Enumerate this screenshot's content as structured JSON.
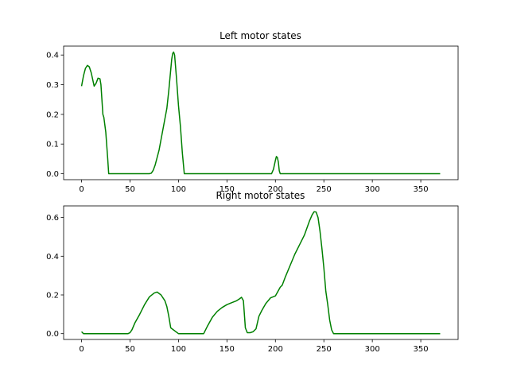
{
  "colors": {
    "line": "#008000",
    "axes": "#000000",
    "background": "#ffffff"
  },
  "chart_data": [
    {
      "type": "line",
      "title": "Left motor states",
      "xlabel": "",
      "ylabel": "",
      "xlim": [
        -18.5,
        388.5
      ],
      "ylim": [
        -0.02,
        0.43
      ],
      "xticks": [
        0,
        50,
        100,
        150,
        200,
        250,
        300,
        350
      ],
      "yticks": [
        0.0,
        0.1,
        0.2,
        0.3,
        0.4
      ],
      "ytick_labels": [
        "0.0",
        "0.1",
        "0.2",
        "0.3",
        "0.4"
      ],
      "grid": false,
      "series": [
        {
          "x": [
            0,
            2,
            4,
            6,
            8,
            10,
            12,
            13,
            15,
            17,
            19,
            20,
            21,
            22,
            23,
            25,
            27,
            28,
            30,
            40,
            50,
            60,
            70,
            72,
            74,
            76,
            80,
            84,
            88,
            90,
            92,
            93,
            94,
            95,
            96,
            98,
            100,
            102,
            104,
            106,
            110,
            150,
            196,
            198,
            200,
            201,
            202,
            203,
            204,
            205,
            206,
            250,
            300,
            350,
            370
          ],
          "y": [
            0.295,
            0.33,
            0.355,
            0.365,
            0.36,
            0.34,
            0.31,
            0.295,
            0.305,
            0.322,
            0.32,
            0.3,
            0.25,
            0.2,
            0.19,
            0.14,
            0.05,
            0.0,
            0.0,
            0.0,
            0.0,
            0.0,
            0.0,
            0.002,
            0.012,
            0.03,
            0.08,
            0.15,
            0.22,
            0.28,
            0.35,
            0.385,
            0.405,
            0.41,
            0.4,
            0.32,
            0.23,
            0.16,
            0.07,
            0.0,
            0.0,
            0.0,
            0.0,
            0.015,
            0.045,
            0.058,
            0.055,
            0.04,
            0.01,
            0.0,
            0.0,
            0.0,
            0.0,
            0.0,
            0.0
          ]
        }
      ]
    },
    {
      "type": "line",
      "title": "Right motor states",
      "xlabel": "",
      "ylabel": "",
      "xlim": [
        -18.5,
        388.5
      ],
      "ylim": [
        -0.03,
        0.66
      ],
      "xticks": [
        0,
        50,
        100,
        150,
        200,
        250,
        300,
        350
      ],
      "yticks": [
        0.0,
        0.2,
        0.4,
        0.6
      ],
      "ytick_labels": [
        "0.0",
        "0.2",
        "0.4",
        "0.6"
      ],
      "grid": false,
      "series": [
        {
          "x": [
            0,
            2,
            10,
            20,
            30,
            40,
            48,
            50,
            52,
            55,
            60,
            65,
            70,
            75,
            78,
            82,
            86,
            88,
            90,
            92,
            100,
            110,
            120,
            126,
            130,
            135,
            140,
            145,
            150,
            155,
            160,
            163,
            165,
            167,
            169,
            171,
            174,
            177,
            180,
            183,
            186,
            190,
            195,
            200,
            205,
            207,
            210,
            215,
            220,
            225,
            230,
            235,
            238,
            240,
            242,
            244,
            246,
            248,
            250,
            252,
            254,
            256,
            258,
            260,
            270,
            300,
            350,
            370
          ],
          "y": [
            0.01,
            0.0,
            0.0,
            0.0,
            0.0,
            0.0,
            0.0,
            0.005,
            0.02,
            0.055,
            0.1,
            0.15,
            0.19,
            0.21,
            0.215,
            0.2,
            0.17,
            0.14,
            0.09,
            0.03,
            0.0,
            0.0,
            0.0,
            0.0,
            0.04,
            0.085,
            0.115,
            0.135,
            0.15,
            0.16,
            0.17,
            0.18,
            0.188,
            0.17,
            0.03,
            0.005,
            0.005,
            0.01,
            0.025,
            0.09,
            0.12,
            0.155,
            0.185,
            0.195,
            0.24,
            0.25,
            0.29,
            0.35,
            0.41,
            0.46,
            0.51,
            0.58,
            0.615,
            0.63,
            0.628,
            0.6,
            0.53,
            0.44,
            0.34,
            0.22,
            0.15,
            0.07,
            0.02,
            0.0,
            0.0,
            0.0,
            0.0,
            0.0
          ]
        }
      ]
    }
  ]
}
